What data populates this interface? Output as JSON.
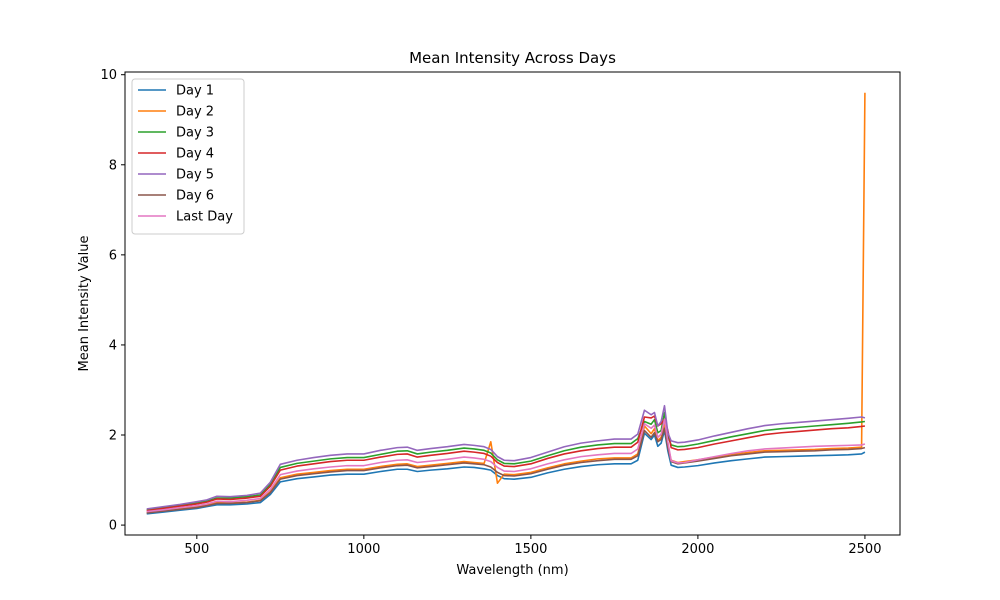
{
  "chart_data": {
    "type": "line",
    "title": "Mean Intensity Across Days",
    "xlabel": "Wavelength (nm)",
    "ylabel": "Mean Intensity Value",
    "xlim": [
      285,
      2605
    ],
    "ylim": [
      -0.22,
      10.06
    ],
    "xticks": [
      500,
      1000,
      1500,
      2000,
      2500
    ],
    "yticks": [
      0,
      2,
      4,
      6,
      8,
      10
    ],
    "grid": false,
    "legend_position": "top-left",
    "x": [
      350,
      400,
      450,
      500,
      530,
      560,
      600,
      650,
      690,
      720,
      750,
      800,
      850,
      900,
      950,
      1000,
      1050,
      1100,
      1130,
      1160,
      1200,
      1250,
      1300,
      1330,
      1360,
      1380,
      1400,
      1420,
      1450,
      1500,
      1550,
      1600,
      1650,
      1700,
      1750,
      1800,
      1820,
      1840,
      1860,
      1870,
      1880,
      1890,
      1900,
      1910,
      1920,
      1940,
      1960,
      2000,
      2050,
      2100,
      2150,
      2200,
      2250,
      2300,
      2350,
      2400,
      2450,
      2490,
      2500
    ],
    "series": [
      {
        "name": "Day 1",
        "color": "#1f77b4",
        "values": [
          0.25,
          0.29,
          0.33,
          0.37,
          0.41,
          0.45,
          0.45,
          0.47,
          0.5,
          0.68,
          0.96,
          1.03,
          1.07,
          1.11,
          1.13,
          1.13,
          1.19,
          1.24,
          1.24,
          1.19,
          1.22,
          1.25,
          1.29,
          1.28,
          1.25,
          1.22,
          1.1,
          1.03,
          1.02,
          1.06,
          1.16,
          1.24,
          1.3,
          1.34,
          1.36,
          1.36,
          1.44,
          2.04,
          1.9,
          2.0,
          1.75,
          1.82,
          2.1,
          1.65,
          1.33,
          1.28,
          1.29,
          1.32,
          1.38,
          1.43,
          1.47,
          1.51,
          1.52,
          1.53,
          1.54,
          1.55,
          1.56,
          1.58,
          1.62
        ]
      },
      {
        "name": "Day 2",
        "color": "#ff7f0e",
        "values": [
          0.28,
          0.32,
          0.36,
          0.4,
          0.44,
          0.5,
          0.49,
          0.51,
          0.55,
          0.74,
          1.05,
          1.13,
          1.17,
          1.21,
          1.24,
          1.24,
          1.3,
          1.35,
          1.36,
          1.3,
          1.33,
          1.37,
          1.41,
          1.39,
          1.37,
          1.85,
          0.93,
          1.13,
          1.12,
          1.17,
          1.27,
          1.36,
          1.42,
          1.47,
          1.49,
          1.49,
          1.58,
          2.2,
          2.03,
          2.14,
          1.88,
          1.95,
          2.25,
          1.77,
          1.44,
          1.39,
          1.41,
          1.45,
          1.51,
          1.57,
          1.61,
          1.65,
          1.66,
          1.67,
          1.68,
          1.7,
          1.71,
          1.73,
          9.6
        ]
      },
      {
        "name": "Day 3",
        "color": "#2ca02c",
        "values": [
          0.34,
          0.39,
          0.44,
          0.49,
          0.53,
          0.6,
          0.6,
          0.63,
          0.67,
          0.9,
          1.28,
          1.37,
          1.42,
          1.47,
          1.5,
          1.5,
          1.57,
          1.64,
          1.65,
          1.58,
          1.62,
          1.66,
          1.71,
          1.69,
          1.66,
          1.6,
          1.45,
          1.37,
          1.36,
          1.42,
          1.54,
          1.65,
          1.73,
          1.78,
          1.81,
          1.81,
          1.92,
          2.3,
          2.24,
          2.34,
          2.05,
          2.1,
          2.5,
          1.98,
          1.78,
          1.74,
          1.75,
          1.8,
          1.88,
          1.96,
          2.03,
          2.1,
          2.14,
          2.17,
          2.2,
          2.23,
          2.26,
          2.29,
          2.3
        ]
      },
      {
        "name": "Day 4",
        "color": "#d62728",
        "values": [
          0.32,
          0.37,
          0.42,
          0.47,
          0.51,
          0.58,
          0.57,
          0.6,
          0.64,
          0.86,
          1.22,
          1.31,
          1.36,
          1.41,
          1.44,
          1.44,
          1.51,
          1.57,
          1.58,
          1.51,
          1.55,
          1.59,
          1.64,
          1.62,
          1.59,
          1.53,
          1.39,
          1.31,
          1.3,
          1.36,
          1.48,
          1.58,
          1.65,
          1.7,
          1.73,
          1.73,
          1.84,
          2.4,
          2.38,
          2.42,
          2.2,
          2.25,
          2.35,
          2.1,
          1.72,
          1.67,
          1.68,
          1.72,
          1.8,
          1.87,
          1.94,
          2.01,
          2.05,
          2.08,
          2.11,
          2.14,
          2.16,
          2.19,
          2.2
        ]
      },
      {
        "name": "Day 5",
        "color": "#9467bd",
        "values": [
          0.36,
          0.41,
          0.46,
          0.52,
          0.56,
          0.64,
          0.63,
          0.66,
          0.71,
          0.95,
          1.35,
          1.44,
          1.5,
          1.55,
          1.58,
          1.58,
          1.66,
          1.72,
          1.73,
          1.66,
          1.7,
          1.74,
          1.79,
          1.77,
          1.74,
          1.68,
          1.52,
          1.44,
          1.43,
          1.5,
          1.62,
          1.74,
          1.82,
          1.87,
          1.91,
          1.91,
          2.02,
          2.55,
          2.45,
          2.5,
          2.2,
          2.3,
          2.65,
          2.05,
          1.87,
          1.83,
          1.84,
          1.89,
          1.98,
          2.06,
          2.14,
          2.21,
          2.25,
          2.28,
          2.31,
          2.34,
          2.37,
          2.4,
          2.38
        ]
      },
      {
        "name": "Day 6",
        "color": "#8c564b",
        "values": [
          0.27,
          0.31,
          0.35,
          0.39,
          0.43,
          0.48,
          0.48,
          0.5,
          0.54,
          0.72,
          1.02,
          1.1,
          1.14,
          1.18,
          1.21,
          1.21,
          1.27,
          1.32,
          1.33,
          1.27,
          1.3,
          1.34,
          1.38,
          1.36,
          1.34,
          1.29,
          1.17,
          1.1,
          1.09,
          1.14,
          1.24,
          1.33,
          1.39,
          1.43,
          1.46,
          1.46,
          1.54,
          2.1,
          1.95,
          2.05,
          1.85,
          1.9,
          2.15,
          1.72,
          1.41,
          1.36,
          1.38,
          1.42,
          1.48,
          1.54,
          1.58,
          1.62,
          1.63,
          1.64,
          1.65,
          1.67,
          1.68,
          1.7,
          1.72
        ]
      },
      {
        "name": "Last Day",
        "color": "#e377c2",
        "values": [
          0.3,
          0.34,
          0.39,
          0.43,
          0.47,
          0.53,
          0.52,
          0.55,
          0.59,
          0.79,
          1.12,
          1.2,
          1.25,
          1.29,
          1.32,
          1.32,
          1.39,
          1.44,
          1.45,
          1.39,
          1.42,
          1.46,
          1.51,
          1.49,
          1.46,
          1.41,
          1.28,
          1.2,
          1.19,
          1.25,
          1.36,
          1.45,
          1.52,
          1.56,
          1.59,
          1.59,
          1.69,
          2.25,
          2.15,
          2.22,
          1.95,
          2.02,
          2.35,
          1.85,
          1.43,
          1.38,
          1.39,
          1.45,
          1.52,
          1.59,
          1.65,
          1.69,
          1.71,
          1.73,
          1.75,
          1.76,
          1.77,
          1.78,
          1.8
        ]
      }
    ]
  }
}
